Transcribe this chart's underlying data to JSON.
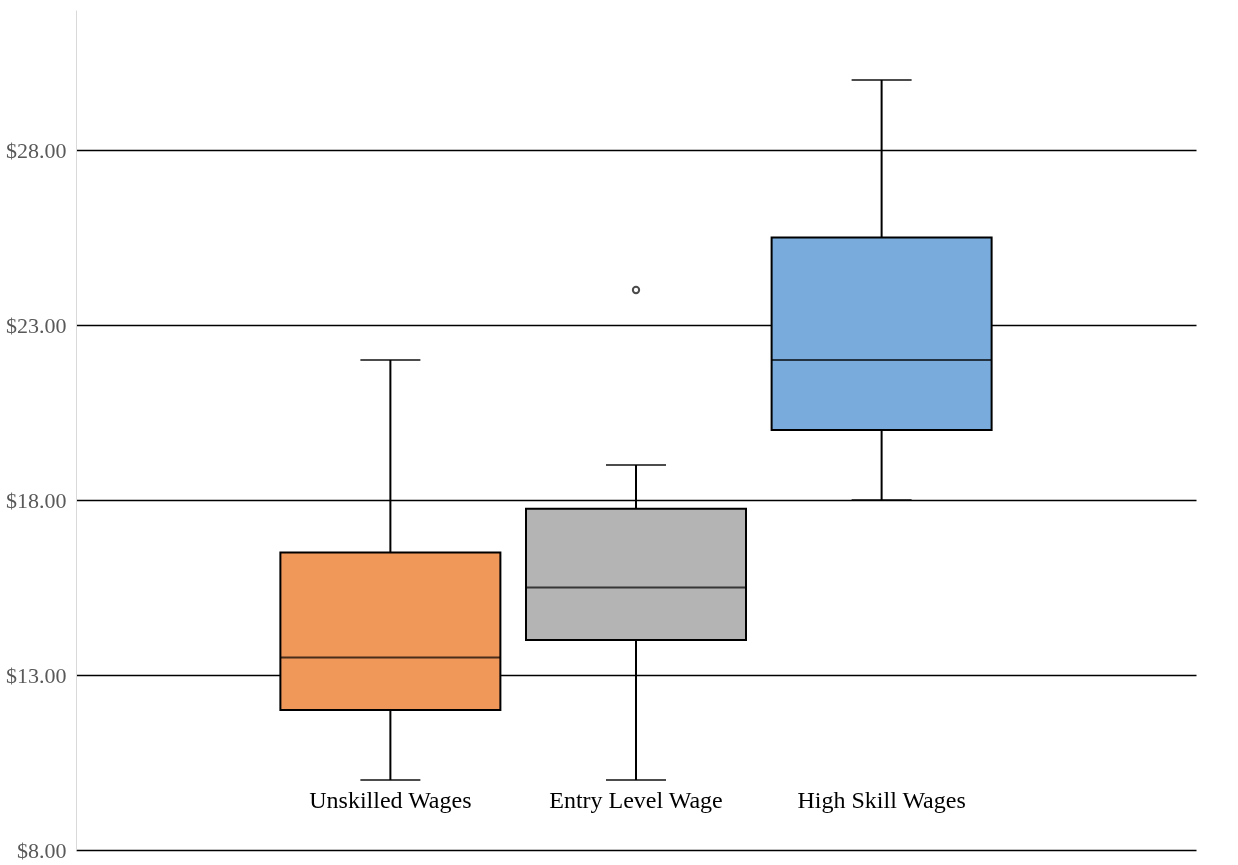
{
  "chart_data": {
    "type": "box",
    "categories": [
      "Unskilled Wages",
      "Entry Level Wage",
      "High Skill Wages"
    ],
    "boxes": [
      {
        "low": 10,
        "q1": 12,
        "median": 13.5,
        "q3": 16.5,
        "high": 22
      },
      {
        "low": 10,
        "q1": 14,
        "median": 15.5,
        "q3": 17.75,
        "high": 19,
        "outliers": [
          24
        ]
      },
      {
        "low": 18,
        "q1": 20,
        "median": 22,
        "q3": 25.5,
        "high": 30
      }
    ],
    "colors": [
      "#f0975a",
      "#b4b4b4",
      "#79acdc"
    ],
    "ylim": [
      8,
      32
    ],
    "yticks": [
      {
        "value": 8,
        "label": "$8.00"
      },
      {
        "value": 13,
        "label": "$13.00"
      },
      {
        "value": 18,
        "label": "$18.00"
      },
      {
        "value": 23,
        "label": "$23.00"
      },
      {
        "value": 28,
        "label": "$28.00"
      }
    ],
    "grid": "y",
    "legend": false
  }
}
